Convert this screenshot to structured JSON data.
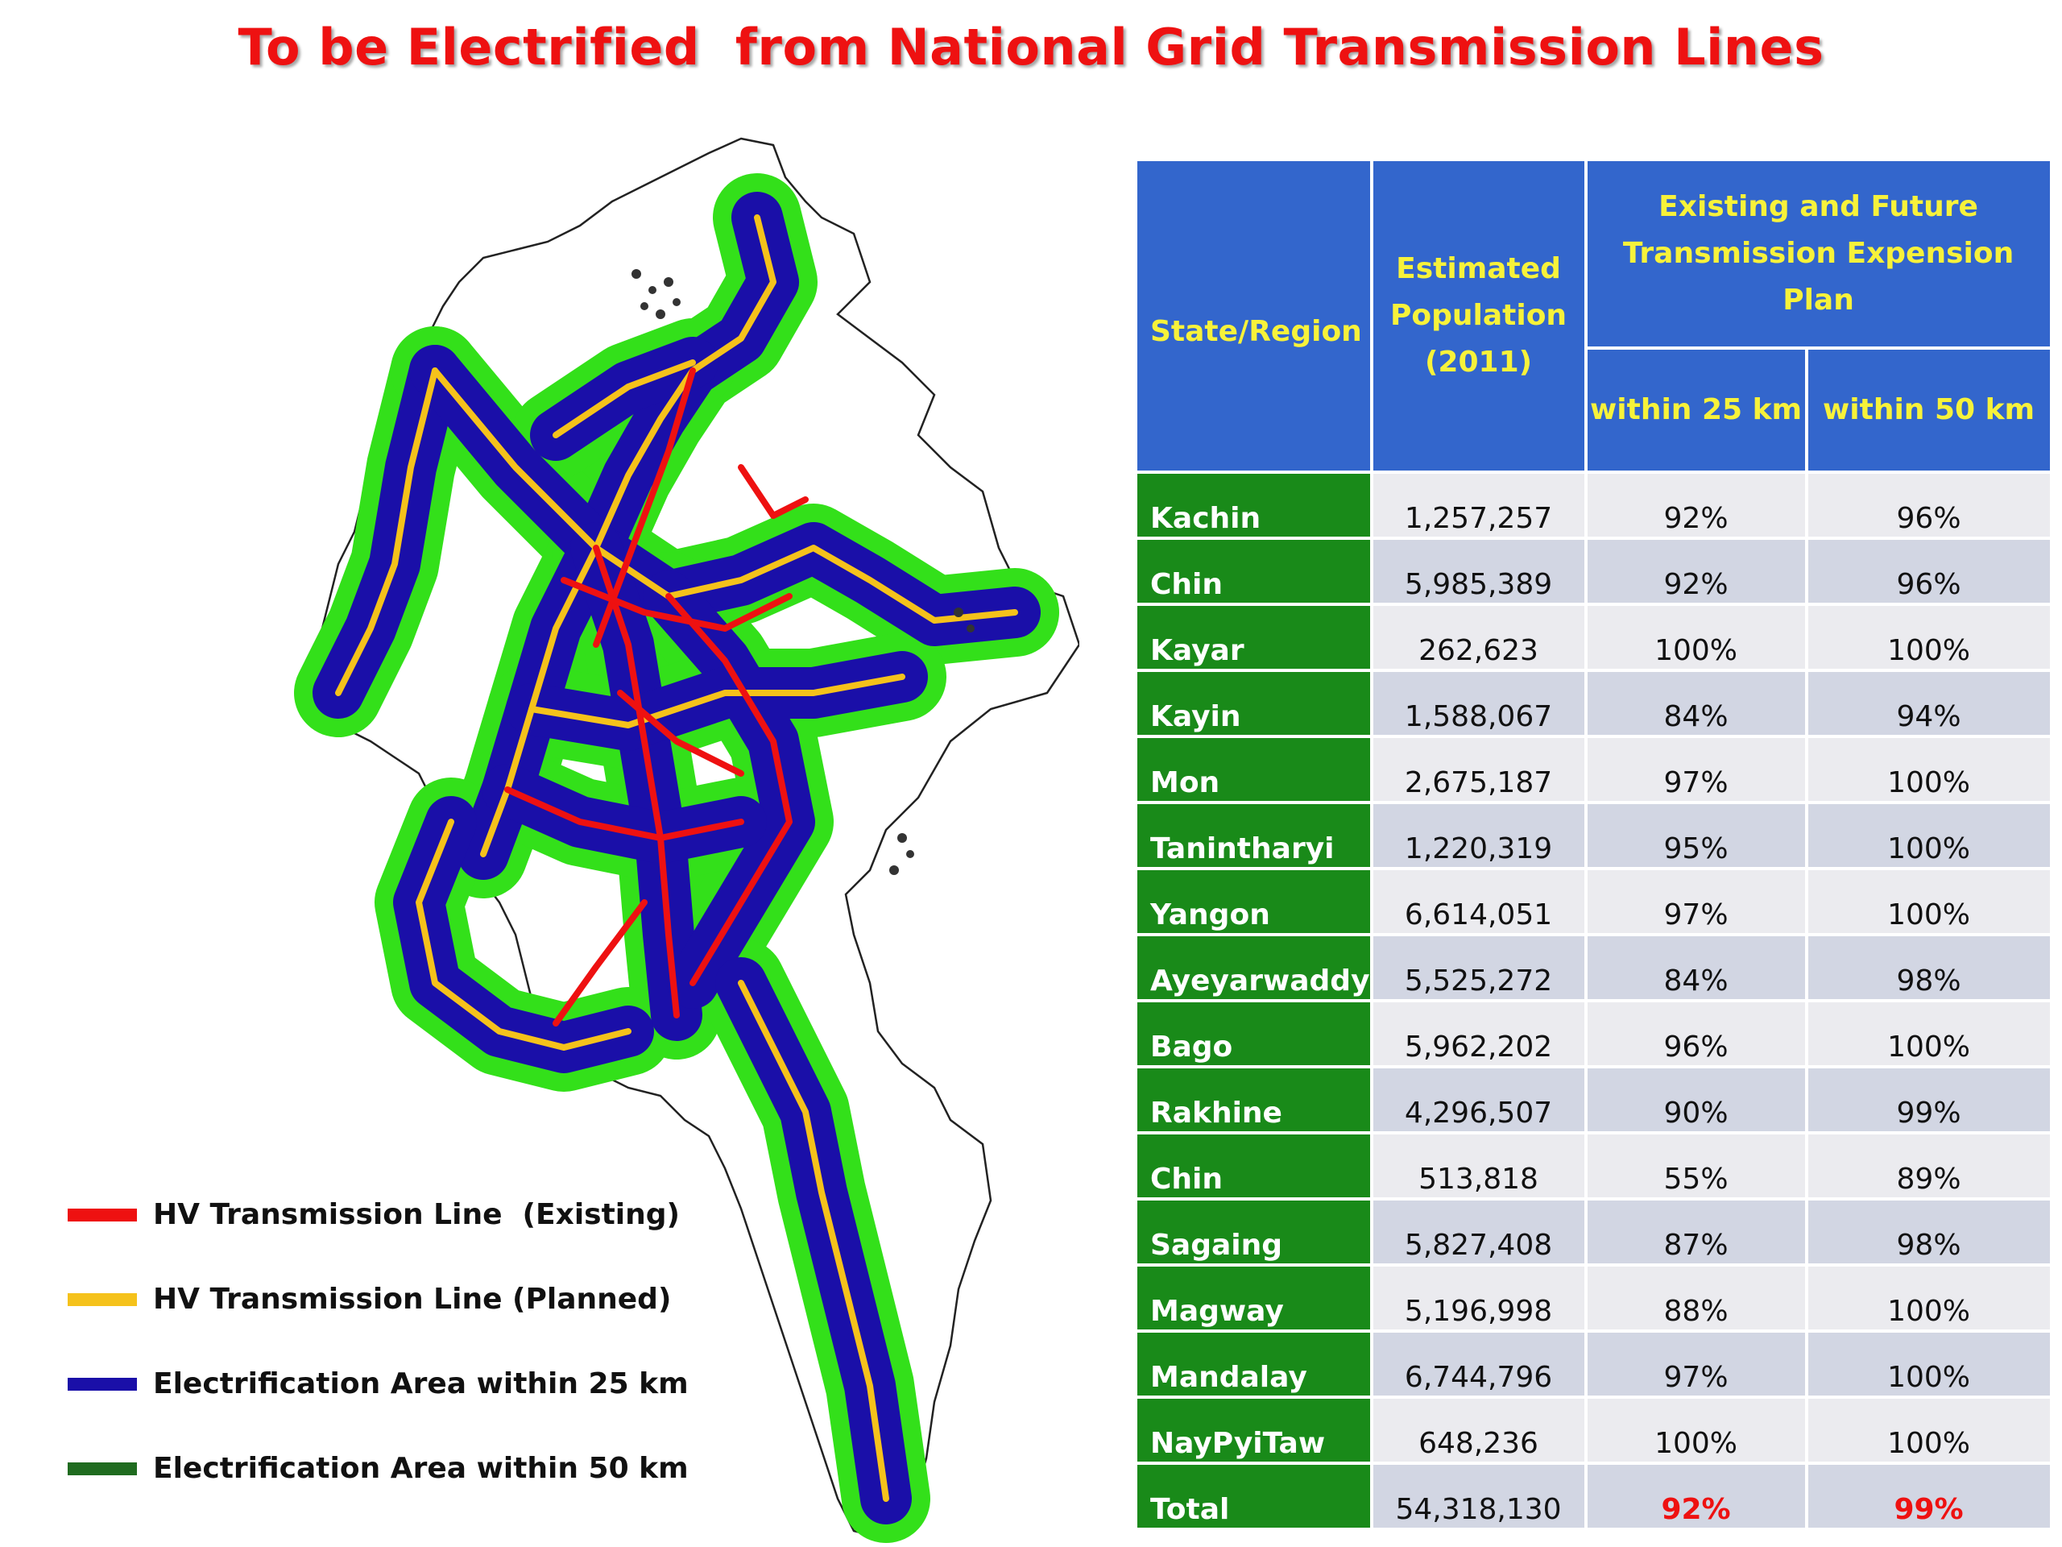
{
  "title": "To be Electrified  from National Grid Transmission Lines",
  "colors": {
    "existing": "#ee1111",
    "planned": "#f5c21b",
    "within25": "#1a0fa8",
    "within50": "#1f8a1f",
    "buffer50_fill": "#33e01a",
    "header_bg": "#3366cc",
    "header_text": "#f7f23a",
    "region_bg": "#198a19"
  },
  "legend": [
    {
      "label": "HV Transmission Line  (Existing)",
      "color": "#ee1111"
    },
    {
      "label": "HV Transmission Line (Planned)",
      "color": "#f5c21b"
    },
    {
      "label": "Electrification Area within 25 km",
      "color": "#1a0fa8"
    },
    {
      "label": "Electrification Area within 50 km",
      "color": "#1f6b1f"
    }
  ],
  "table": {
    "headers": {
      "state": "State/Region",
      "population": "Estimated Population (2011)",
      "plan": "Existing and Future Transmission Expension Plan",
      "within25": "within 25 km",
      "within50": "within 50 km"
    },
    "rows": [
      {
        "region": "Kachin",
        "population": "1,257,257",
        "within25": "92%",
        "within50": "96%"
      },
      {
        "region": "Chin",
        "population": "5,985,389",
        "within25": "92%",
        "within50": "96%"
      },
      {
        "region": "Kayar",
        "population": "262,623",
        "within25": "100%",
        "within50": "100%"
      },
      {
        "region": "Kayin",
        "population": "1,588,067",
        "within25": "84%",
        "within50": "94%"
      },
      {
        "region": "Mon",
        "population": "2,675,187",
        "within25": "97%",
        "within50": "100%"
      },
      {
        "region": "Tanintharyi",
        "population": "1,220,319",
        "within25": "95%",
        "within50": "100%"
      },
      {
        "region": "Yangon",
        "population": "6,614,051",
        "within25": "97%",
        "within50": "100%"
      },
      {
        "region": "Ayeyarwaddy",
        "population": "5,525,272",
        "within25": "84%",
        "within50": "98%"
      },
      {
        "region": "Bago",
        "population": "5,962,202",
        "within25": "96%",
        "within50": "100%"
      },
      {
        "region": "Rakhine",
        "population": "4,296,507",
        "within25": "90%",
        "within50": "99%"
      },
      {
        "region": "Chin",
        "population": "513,818",
        "within25": "55%",
        "within50": "89%"
      },
      {
        "region": "Sagaing",
        "population": "5,827,408",
        "within25": "87%",
        "within50": "98%"
      },
      {
        "region": "Magway",
        "population": "5,196,998",
        "within25": "88%",
        "within50": "100%"
      },
      {
        "region": "Mandalay",
        "population": "6,744,796",
        "within25": "97%",
        "within50": "100%"
      },
      {
        "region": "NayPyiTaw",
        "population": "648,236",
        "within25": "100%",
        "within50": "100%"
      }
    ],
    "total": {
      "region": "Total",
      "population": "54,318,130",
      "within25": "92%",
      "within50": "99%"
    }
  }
}
